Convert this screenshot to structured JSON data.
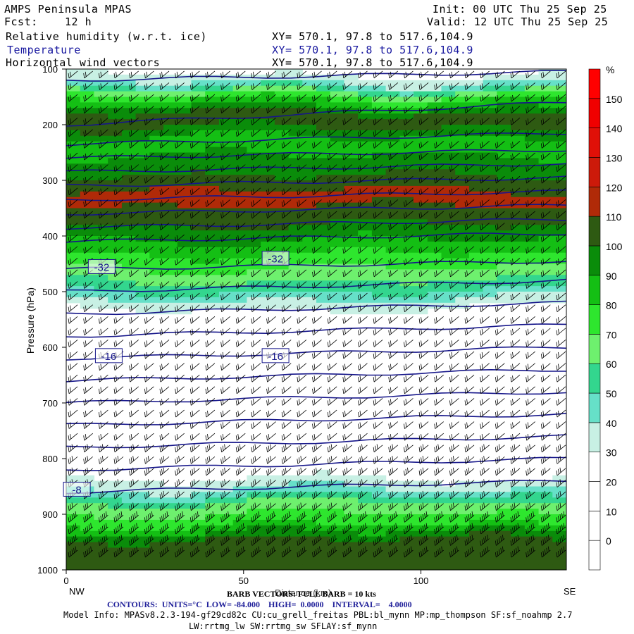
{
  "header": {
    "model": "AMPS Peninsula MPAS",
    "init": "Init: 00 UTC Thu 25 Sep 25",
    "fcst_label": "Fcst:",
    "fcst_value": "12 h",
    "valid": "Valid: 12 UTC Thu 25 Sep 25",
    "fields": [
      {
        "name": "Relative humidity (w.r.t. ice)",
        "xy": "XY= 570.1, 97.8 to 517.6,104.9",
        "color": "#000000"
      },
      {
        "name": "Temperature",
        "xy": "XY= 570.1, 97.8 to 517.6,104.9",
        "color": "#1a1aa0"
      },
      {
        "name": "Horizontal wind vectors",
        "xy": "XY= 570.1, 97.8 to 517.6,104.9",
        "color": "#000000"
      }
    ]
  },
  "footer": {
    "left_end": "NW",
    "right_end": "SE",
    "xlabel": "Distance (km)",
    "barb_note": "BARB VECTORS: FULL BARB = 10 kts",
    "contours_line": "CONTOURS:  UNITS=°C  LOW= -84.000    HIGH=  0.0000    INTERVAL=    4.0000",
    "model_info": "Model Info: MPASv8.2.3-194-gf29cd82c CU:cu_grell_freitas PBL:bl_mynn MP:mp_thompson SF:sf_noahmp 2.7",
    "model_info2": "LW:rrtmg_lw SW:rrtmg_sw SFLAY:sf_mynn"
  },
  "chart_data": {
    "type": "heatmap",
    "title": "Relative humidity (w.r.t. ice)",
    "ylabel": "Pressure (hPa)",
    "xlabel": "Distance (km)",
    "x_range": [
      0,
      141
    ],
    "x_ticks": [
      0,
      50,
      100
    ],
    "y_range": [
      1000,
      100
    ],
    "y_ticks": [
      100,
      200,
      300,
      400,
      500,
      600,
      700,
      800,
      900,
      1000
    ],
    "colorbar": {
      "units": "%",
      "labels": [
        0,
        10,
        20,
        30,
        40,
        50,
        60,
        70,
        80,
        90,
        100,
        110,
        120,
        130,
        140,
        150
      ],
      "bins": [
        {
          "lo": -10,
          "hi": 0,
          "color": "#ffffff"
        },
        {
          "lo": 0,
          "hi": 10,
          "color": "#ffffff"
        },
        {
          "lo": 10,
          "hi": 20,
          "color": "#ffffff"
        },
        {
          "lo": 20,
          "hi": 30,
          "color": "#ffffff"
        },
        {
          "lo": 30,
          "hi": 40,
          "color": "#c8f0e4"
        },
        {
          "lo": 40,
          "hi": 50,
          "color": "#66e0c8"
        },
        {
          "lo": 50,
          "hi": 60,
          "color": "#33d68e"
        },
        {
          "lo": 60,
          "hi": 70,
          "color": "#6ef06e"
        },
        {
          "lo": 70,
          "hi": 80,
          "color": "#2ee62e"
        },
        {
          "lo": 80,
          "hi": 90,
          "color": "#14bf14"
        },
        {
          "lo": 90,
          "hi": 100,
          "color": "#0a8c0a"
        },
        {
          "lo": 100,
          "hi": 110,
          "color": "#2e5a12"
        },
        {
          "lo": 110,
          "hi": 120,
          "color": "#b02a08"
        },
        {
          "lo": 120,
          "hi": 130,
          "color": "#cc1a0a"
        },
        {
          "lo": 130,
          "hi": 140,
          "color": "#e01008"
        },
        {
          "lo": 140,
          "hi": 150,
          "color": "#f00000"
        },
        {
          "lo": 150,
          "hi": 160,
          "color": "#ff0000"
        }
      ]
    },
    "rh_profile": [
      {
        "p": 100,
        "rh": 20
      },
      {
        "p": 130,
        "rh": 45
      },
      {
        "p": 150,
        "rh": 75
      },
      {
        "p": 190,
        "rh": 110
      },
      {
        "p": 230,
        "rh": 85
      },
      {
        "p": 280,
        "rh": 95
      },
      {
        "p": 330,
        "rh": 115
      },
      {
        "p": 380,
        "rh": 100
      },
      {
        "p": 420,
        "rh": 85
      },
      {
        "p": 470,
        "rh": 65
      },
      {
        "p": 500,
        "rh": 50
      },
      {
        "p": 530,
        "rh": 30
      },
      {
        "p": 560,
        "rh": 20
      },
      {
        "p": 800,
        "rh": 15
      },
      {
        "p": 850,
        "rh": 35
      },
      {
        "p": 880,
        "rh": 60
      },
      {
        "p": 920,
        "rh": 80
      },
      {
        "p": 950,
        "rh": 105
      },
      {
        "p": 1000,
        "rh": 105
      }
    ],
    "temperature_contours": {
      "units": "°C",
      "low": -84,
      "high": 0,
      "interval": 4,
      "labels": [
        {
          "text": "-32",
          "x": 10,
          "p": 455
        },
        {
          "text": "-32",
          "x": 59,
          "p": 440
        },
        {
          "text": "-16",
          "x": 12,
          "p": 615
        },
        {
          "text": "-16",
          "x": 59,
          "p": 615
        },
        {
          "text": "-8",
          "x": 3,
          "p": 855
        }
      ],
      "levels_p_left": [
        120,
        200,
        235,
        260,
        285,
        310,
        335,
        360,
        385,
        410,
        460,
        500,
        540,
        580,
        620,
        660,
        700,
        740,
        780,
        820,
        860
      ],
      "levels_p_right": [
        105,
        160,
        215,
        245,
        270,
        295,
        320,
        345,
        370,
        395,
        445,
        480,
        520,
        560,
        600,
        640,
        680,
        720,
        760,
        800,
        840
      ]
    },
    "wind_barbs": {
      "note": "BARB VECTORS: FULL BARB = 10 kts"
    }
  }
}
